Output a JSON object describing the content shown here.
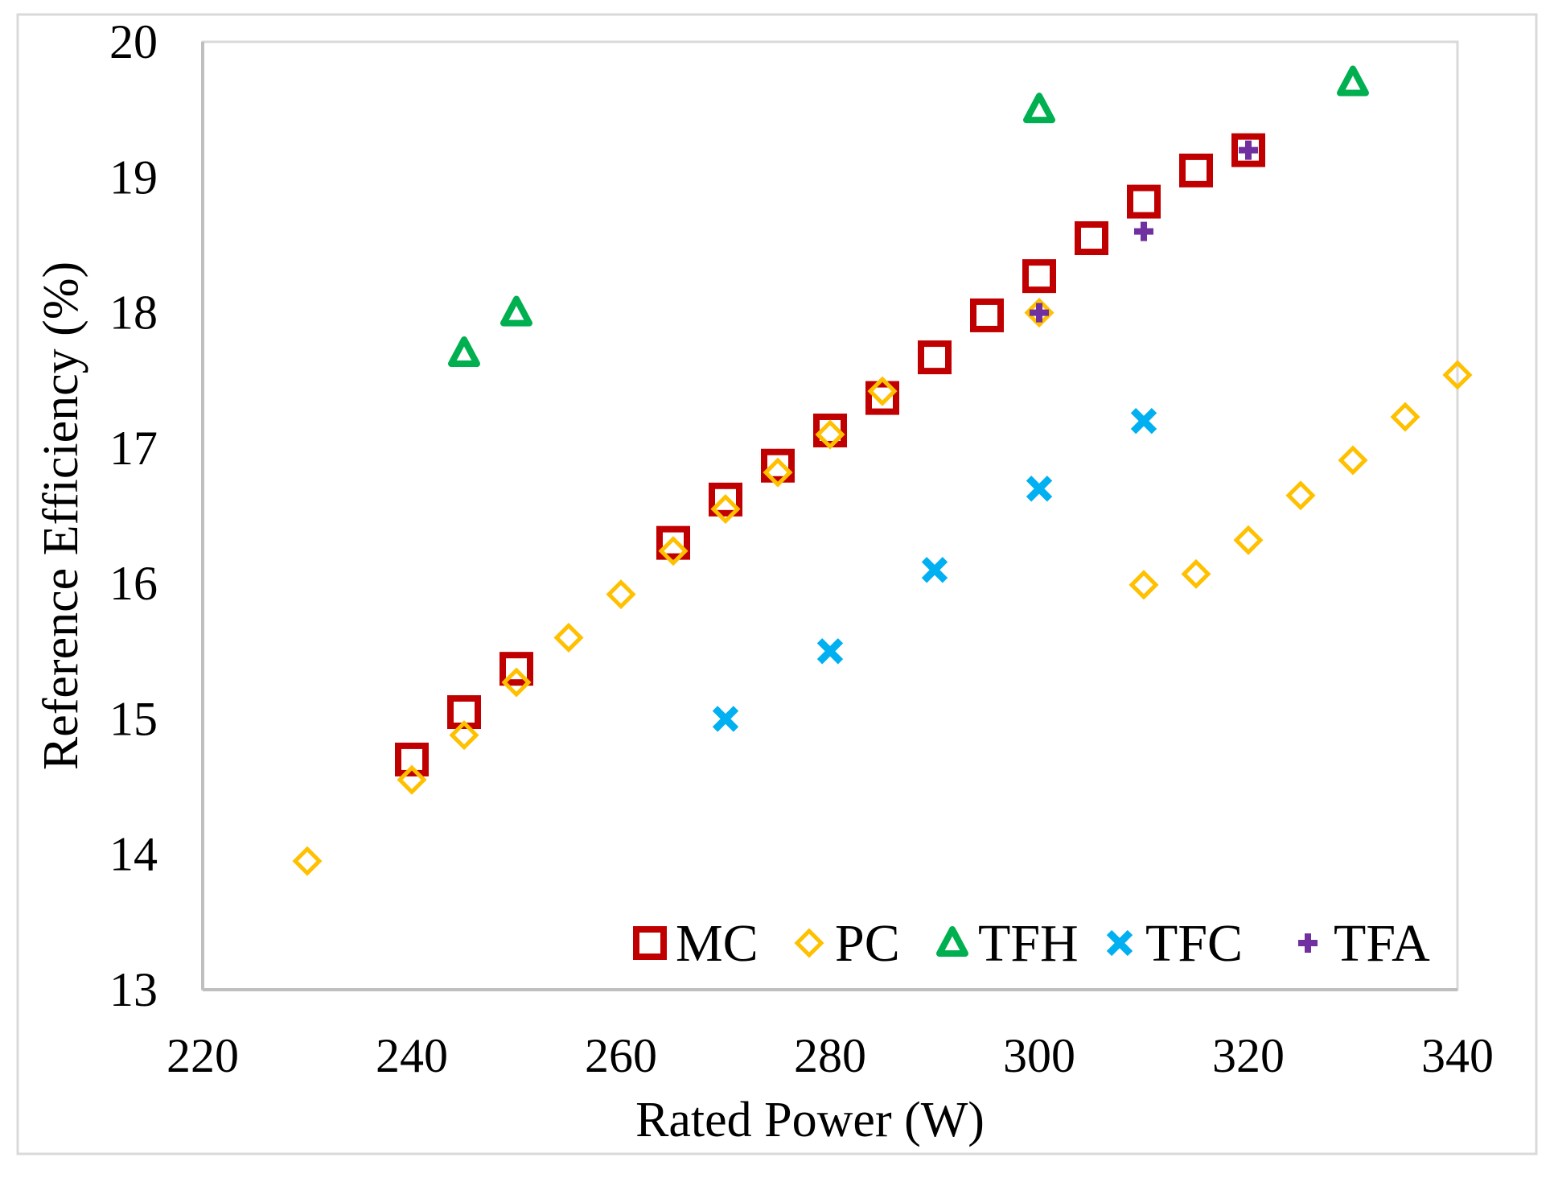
{
  "chart_data": {
    "type": "scatter",
    "title": "",
    "xlabel": "Rated Power (W)",
    "ylabel": "Reference Efficiency (%)",
    "xlim": [
      220,
      340
    ],
    "ylim": [
      13,
      20
    ],
    "xticks": [
      220,
      240,
      260,
      280,
      300,
      320,
      340
    ],
    "yticks": [
      13,
      14,
      15,
      16,
      17,
      18,
      19,
      20
    ],
    "grid": false,
    "legend_position": "bottom-right",
    "series": [
      {
        "name": "MC",
        "marker": "square",
        "color": "#C00000",
        "points": [
          [
            240,
            14.7
          ],
          [
            245,
            15.05
          ],
          [
            250,
            15.37
          ],
          [
            265,
            16.3
          ],
          [
            270,
            16.62
          ],
          [
            275,
            16.87
          ],
          [
            280,
            17.13
          ],
          [
            285,
            17.37
          ],
          [
            290,
            17.67
          ],
          [
            295,
            17.98
          ],
          [
            300,
            18.27
          ],
          [
            305,
            18.55
          ],
          [
            310,
            18.82
          ],
          [
            315,
            19.05
          ],
          [
            320,
            19.2
          ]
        ]
      },
      {
        "name": "PC",
        "marker": "diamond",
        "color": "#FFC000",
        "points": [
          [
            230,
            13.95
          ],
          [
            240,
            14.55
          ],
          [
            245,
            14.88
          ],
          [
            250,
            15.27
          ],
          [
            255,
            15.6
          ],
          [
            260,
            15.92
          ],
          [
            265,
            16.24
          ],
          [
            270,
            16.55
          ],
          [
            275,
            16.82
          ],
          [
            280,
            17.1
          ],
          [
            285,
            17.42
          ],
          [
            300,
            18.0
          ],
          [
            310,
            15.99
          ],
          [
            315,
            16.07
          ],
          [
            320,
            16.32
          ],
          [
            325,
            16.65
          ],
          [
            330,
            16.91
          ],
          [
            335,
            17.23
          ],
          [
            340,
            17.54
          ]
        ]
      },
      {
        "name": "TFH",
        "marker": "triangle",
        "color": "#00B050",
        "points": [
          [
            245,
            17.7
          ],
          [
            250,
            18.0
          ],
          [
            300,
            19.5
          ],
          [
            330,
            19.7
          ]
        ]
      },
      {
        "name": "TFC",
        "marker": "x",
        "color": "#00B0F0",
        "points": [
          [
            270,
            15.0
          ],
          [
            280,
            15.5
          ],
          [
            290,
            16.1
          ],
          [
            300,
            16.7
          ],
          [
            310,
            17.2
          ]
        ]
      },
      {
        "name": "TFA",
        "marker": "plus",
        "color": "#7030A0",
        "points": [
          [
            300,
            18.0
          ],
          [
            310,
            18.6
          ],
          [
            320,
            19.2
          ]
        ]
      }
    ]
  }
}
